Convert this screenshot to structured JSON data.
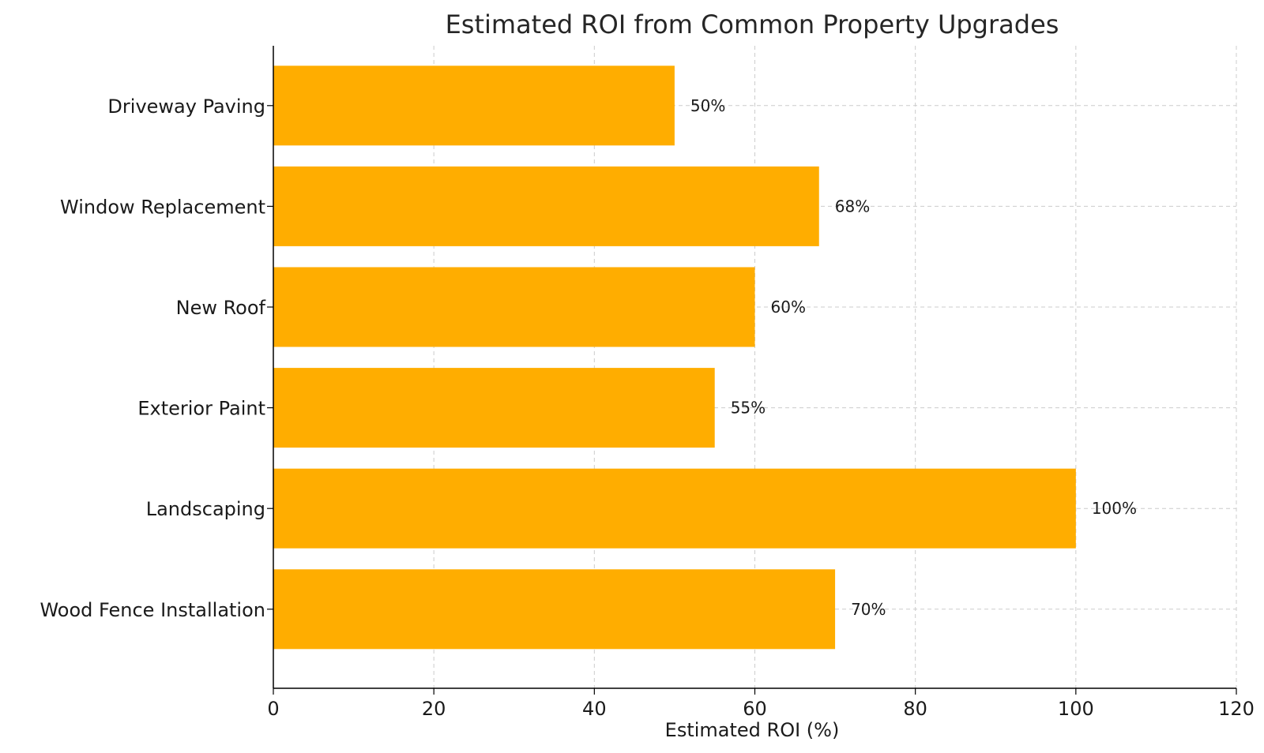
{
  "chart_data": {
    "type": "bar",
    "orientation": "horizontal",
    "title": "Estimated ROI from Common Property Upgrades",
    "xlabel": "Estimated ROI (%)",
    "ylabel": "",
    "categories": [
      "Driveway Paving",
      "Window Replacement",
      "New Roof",
      "Exterior Paint",
      "Landscaping",
      "Wood Fence Installation"
    ],
    "values": [
      50,
      68,
      60,
      55,
      100,
      70
    ],
    "data_labels": [
      "50%",
      "68%",
      "60%",
      "55%",
      "100%",
      "70%"
    ],
    "xlim": [
      0,
      120
    ],
    "xticks": [
      0,
      20,
      40,
      60,
      80,
      100,
      120
    ],
    "xtick_labels": [
      "0",
      "20",
      "40",
      "60",
      "80",
      "100",
      "120"
    ],
    "grid": true,
    "colors": {
      "bar": "#ffad00",
      "grid": "#cccccc",
      "text": "#1a1a1a"
    }
  }
}
